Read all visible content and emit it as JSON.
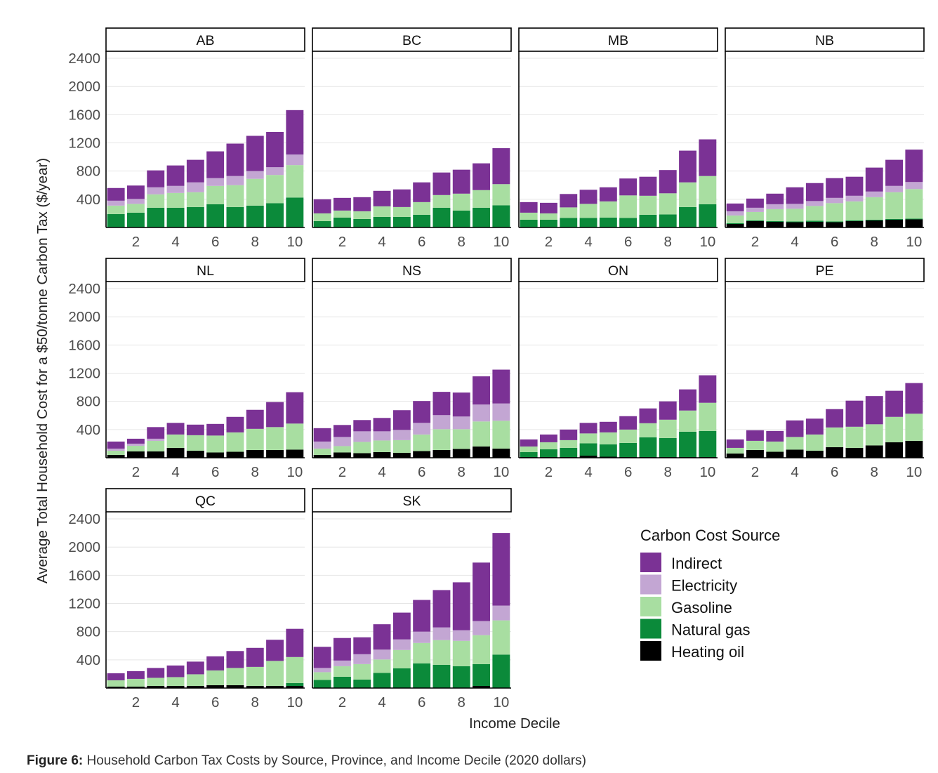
{
  "chart_data": {
    "type": "bar",
    "stacked": true,
    "ylabel": "Average Total Household Cost for a $50/tonne Carbon Tax ($/year)",
    "xlabel": "Income Decile",
    "y_ticks": [
      400,
      800,
      1200,
      1600,
      2000,
      2400
    ],
    "ylim": [
      0,
      2500
    ],
    "x_ticks": [
      2,
      4,
      6,
      8,
      10
    ],
    "categories": [
      1,
      2,
      3,
      4,
      5,
      6,
      7,
      8,
      9,
      10
    ],
    "grid": "horizontal",
    "legend_title": "Carbon Cost Source",
    "legend_position": "right",
    "sources": [
      {
        "key": "oil",
        "name": "Heating oil",
        "color": "#000000"
      },
      {
        "key": "gas",
        "name": "Natural gas",
        "color": "#0b8a3a"
      },
      {
        "key": "gasoline",
        "name": "Gasoline",
        "color": "#a8dea1"
      },
      {
        "key": "elec",
        "name": "Electricity",
        "color": "#c3a6d3"
      },
      {
        "key": "indirect",
        "name": "Indirect",
        "color": "#7b3295"
      }
    ],
    "legend_order": [
      "Indirect",
      "Electricity",
      "Gasoline",
      "Natural gas",
      "Heating oil"
    ],
    "panels": [
      {
        "name": "AB",
        "oil": [
          0,
          0,
          0,
          0,
          0,
          0,
          0,
          0,
          0,
          0
        ],
        "gas": [
          190,
          210,
          280,
          280,
          290,
          330,
          290,
          310,
          345,
          425
        ],
        "gasoline": [
          120,
          125,
          190,
          210,
          210,
          260,
          310,
          380,
          400,
          460
        ],
        "elec": [
          70,
          70,
          100,
          100,
          140,
          110,
          130,
          110,
          110,
          150
        ],
        "indirect": [
          180,
          190,
          240,
          290,
          320,
          380,
          460,
          500,
          500,
          630
        ]
      },
      {
        "name": "BC",
        "oil": [
          0,
          0,
          0,
          0,
          0,
          0,
          0,
          0,
          0,
          0
        ],
        "gas": [
          90,
          140,
          120,
          150,
          150,
          180,
          280,
          240,
          280,
          315
        ],
        "gasoline": [
          110,
          100,
          110,
          150,
          140,
          180,
          180,
          240,
          250,
          300
        ],
        "elec": [
          0,
          0,
          0,
          0,
          0,
          0,
          0,
          0,
          0,
          0
        ],
        "indirect": [
          200,
          180,
          200,
          220,
          250,
          280,
          320,
          340,
          380,
          510
        ]
      },
      {
        "name": "MB",
        "oil": [
          0,
          0,
          0,
          0,
          0,
          0,
          0,
          0,
          0,
          0
        ],
        "gas": [
          110,
          110,
          135,
          135,
          140,
          135,
          180,
          185,
          290,
          330
        ],
        "gasoline": [
          100,
          90,
          150,
          200,
          230,
          320,
          270,
          300,
          350,
          400
        ],
        "elec": [
          0,
          0,
          0,
          0,
          0,
          0,
          0,
          0,
          0,
          0
        ],
        "indirect": [
          150,
          150,
          190,
          200,
          200,
          240,
          270,
          330,
          450,
          520
        ]
      },
      {
        "name": "NB",
        "oil": [
          50,
          90,
          80,
          75,
          80,
          75,
          90,
          100,
          110,
          115
        ],
        "gas": [
          10,
          10,
          10,
          10,
          15,
          10,
          10,
          10,
          10,
          10
        ],
        "gasoline": [
          110,
          120,
          170,
          180,
          210,
          260,
          270,
          320,
          380,
          420
        ],
        "elec": [
          60,
          60,
          70,
          70,
          70,
          75,
          80,
          80,
          90,
          100
        ],
        "indirect": [
          110,
          130,
          150,
          235,
          255,
          280,
          270,
          340,
          370,
          460
        ]
      },
      {
        "name": "NL",
        "oil": [
          40,
          90,
          90,
          140,
          100,
          75,
          85,
          110,
          110,
          115
        ],
        "gas": [
          0,
          0,
          0,
          0,
          0,
          0,
          0,
          0,
          0,
          0
        ],
        "gasoline": [
          60,
          80,
          150,
          190,
          220,
          240,
          275,
          300,
          325,
          370
        ],
        "elec": [
          30,
          30,
          30,
          0,
          0,
          0,
          0,
          0,
          0,
          0
        ],
        "indirect": [
          100,
          70,
          165,
          165,
          150,
          165,
          220,
          270,
          355,
          445
        ]
      },
      {
        "name": "NS",
        "oil": [
          40,
          75,
          65,
          80,
          70,
          95,
          110,
          125,
          160,
          130
        ],
        "gas": [
          0,
          0,
          0,
          0,
          0,
          0,
          0,
          0,
          0,
          0
        ],
        "gasoline": [
          90,
          90,
          160,
          165,
          180,
          235,
          295,
          280,
          355,
          395
        ],
        "elec": [
          100,
          130,
          150,
          130,
          145,
          165,
          200,
          180,
          240,
          245
        ],
        "indirect": [
          190,
          170,
          160,
          190,
          280,
          310,
          330,
          340,
          400,
          480
        ]
      },
      {
        "name": "ON",
        "oil": [
          10,
          10,
          10,
          30,
          15,
          10,
          10,
          10,
          10,
          10
        ],
        "gas": [
          70,
          110,
          130,
          175,
          175,
          200,
          280,
          270,
          360,
          370
        ],
        "gasoline": [
          80,
          100,
          110,
          140,
          170,
          190,
          200,
          260,
          300,
          400
        ],
        "elec": [
          0,
          0,
          0,
          0,
          0,
          0,
          0,
          0,
          0,
          0
        ],
        "indirect": [
          100,
          110,
          150,
          150,
          150,
          190,
          210,
          260,
          300,
          390
        ]
      },
      {
        "name": "PE",
        "oil": [
          60,
          110,
          85,
          115,
          100,
          150,
          140,
          175,
          220,
          240
        ],
        "gas": [
          0,
          0,
          0,
          0,
          0,
          0,
          0,
          0,
          0,
          0
        ],
        "gasoline": [
          80,
          130,
          145,
          180,
          230,
          280,
          300,
          300,
          360,
          385
        ],
        "elec": [
          0,
          0,
          0,
          0,
          0,
          0,
          0,
          0,
          0,
          0
        ],
        "indirect": [
          120,
          150,
          150,
          235,
          225,
          260,
          370,
          400,
          370,
          435
        ]
      },
      {
        "name": "QC",
        "oil": [
          20,
          20,
          30,
          30,
          30,
          40,
          40,
          30,
          30,
          30
        ],
        "gas": [
          0,
          0,
          0,
          0,
          0,
          0,
          0,
          0,
          0,
          40
        ],
        "gasoline": [
          90,
          110,
          115,
          125,
          165,
          210,
          245,
          270,
          355,
          370
        ],
        "elec": [
          0,
          0,
          0,
          0,
          0,
          0,
          0,
          0,
          0,
          0
        ],
        "indirect": [
          100,
          110,
          140,
          165,
          180,
          200,
          240,
          270,
          300,
          400
        ]
      },
      {
        "name": "SK",
        "oil": [
          0,
          0,
          0,
          0,
          0,
          0,
          0,
          0,
          30,
          0
        ],
        "gas": [
          115,
          160,
          120,
          215,
          280,
          350,
          330,
          310,
          310,
          475
        ],
        "gasoline": [
          110,
          150,
          220,
          190,
          260,
          290,
          350,
          360,
          410,
          485
        ],
        "elec": [
          60,
          80,
          140,
          140,
          150,
          160,
          180,
          150,
          200,
          210
        ],
        "indirect": [
          300,
          320,
          240,
          360,
          380,
          450,
          530,
          680,
          830,
          1030
        ]
      }
    ]
  },
  "caption": {
    "label": "Figure 6:",
    "text": "Household Carbon Tax Costs by Source, Province, and Income Decile (2020 dollars)"
  }
}
